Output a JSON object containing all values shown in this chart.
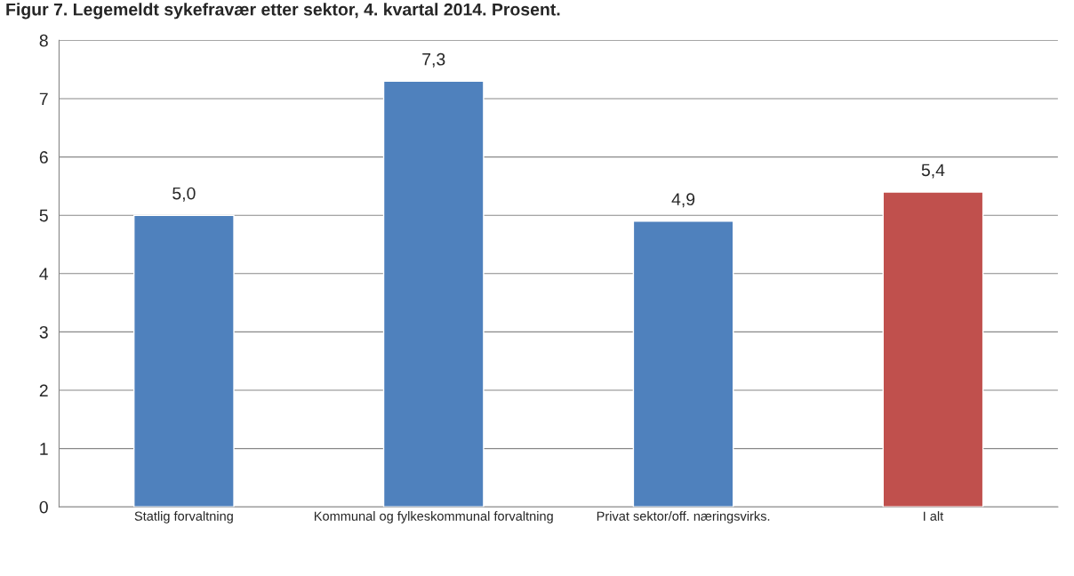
{
  "chart_data": {
    "type": "bar",
    "title": "Figur 7. Legemeldt sykefravær etter sektor, 4. kvartal 2014. Prosent.",
    "categories": [
      "Statlig forvaltning",
      "Kommunal og fylkeskommunal forvaltning",
      "Privat sektor/off. næringsvirks.",
      "I alt"
    ],
    "values": [
      5.0,
      7.3,
      4.9,
      5.4
    ],
    "value_labels": [
      "5,0",
      "7,3",
      "4,9",
      "5,4"
    ],
    "colors": [
      "#4f81bd",
      "#4f81bd",
      "#4f81bd",
      "#c0504d"
    ],
    "ylim": [
      0,
      8
    ],
    "yticks": [
      0,
      1,
      2,
      3,
      4,
      5,
      6,
      7,
      8
    ],
    "grid": "y"
  }
}
